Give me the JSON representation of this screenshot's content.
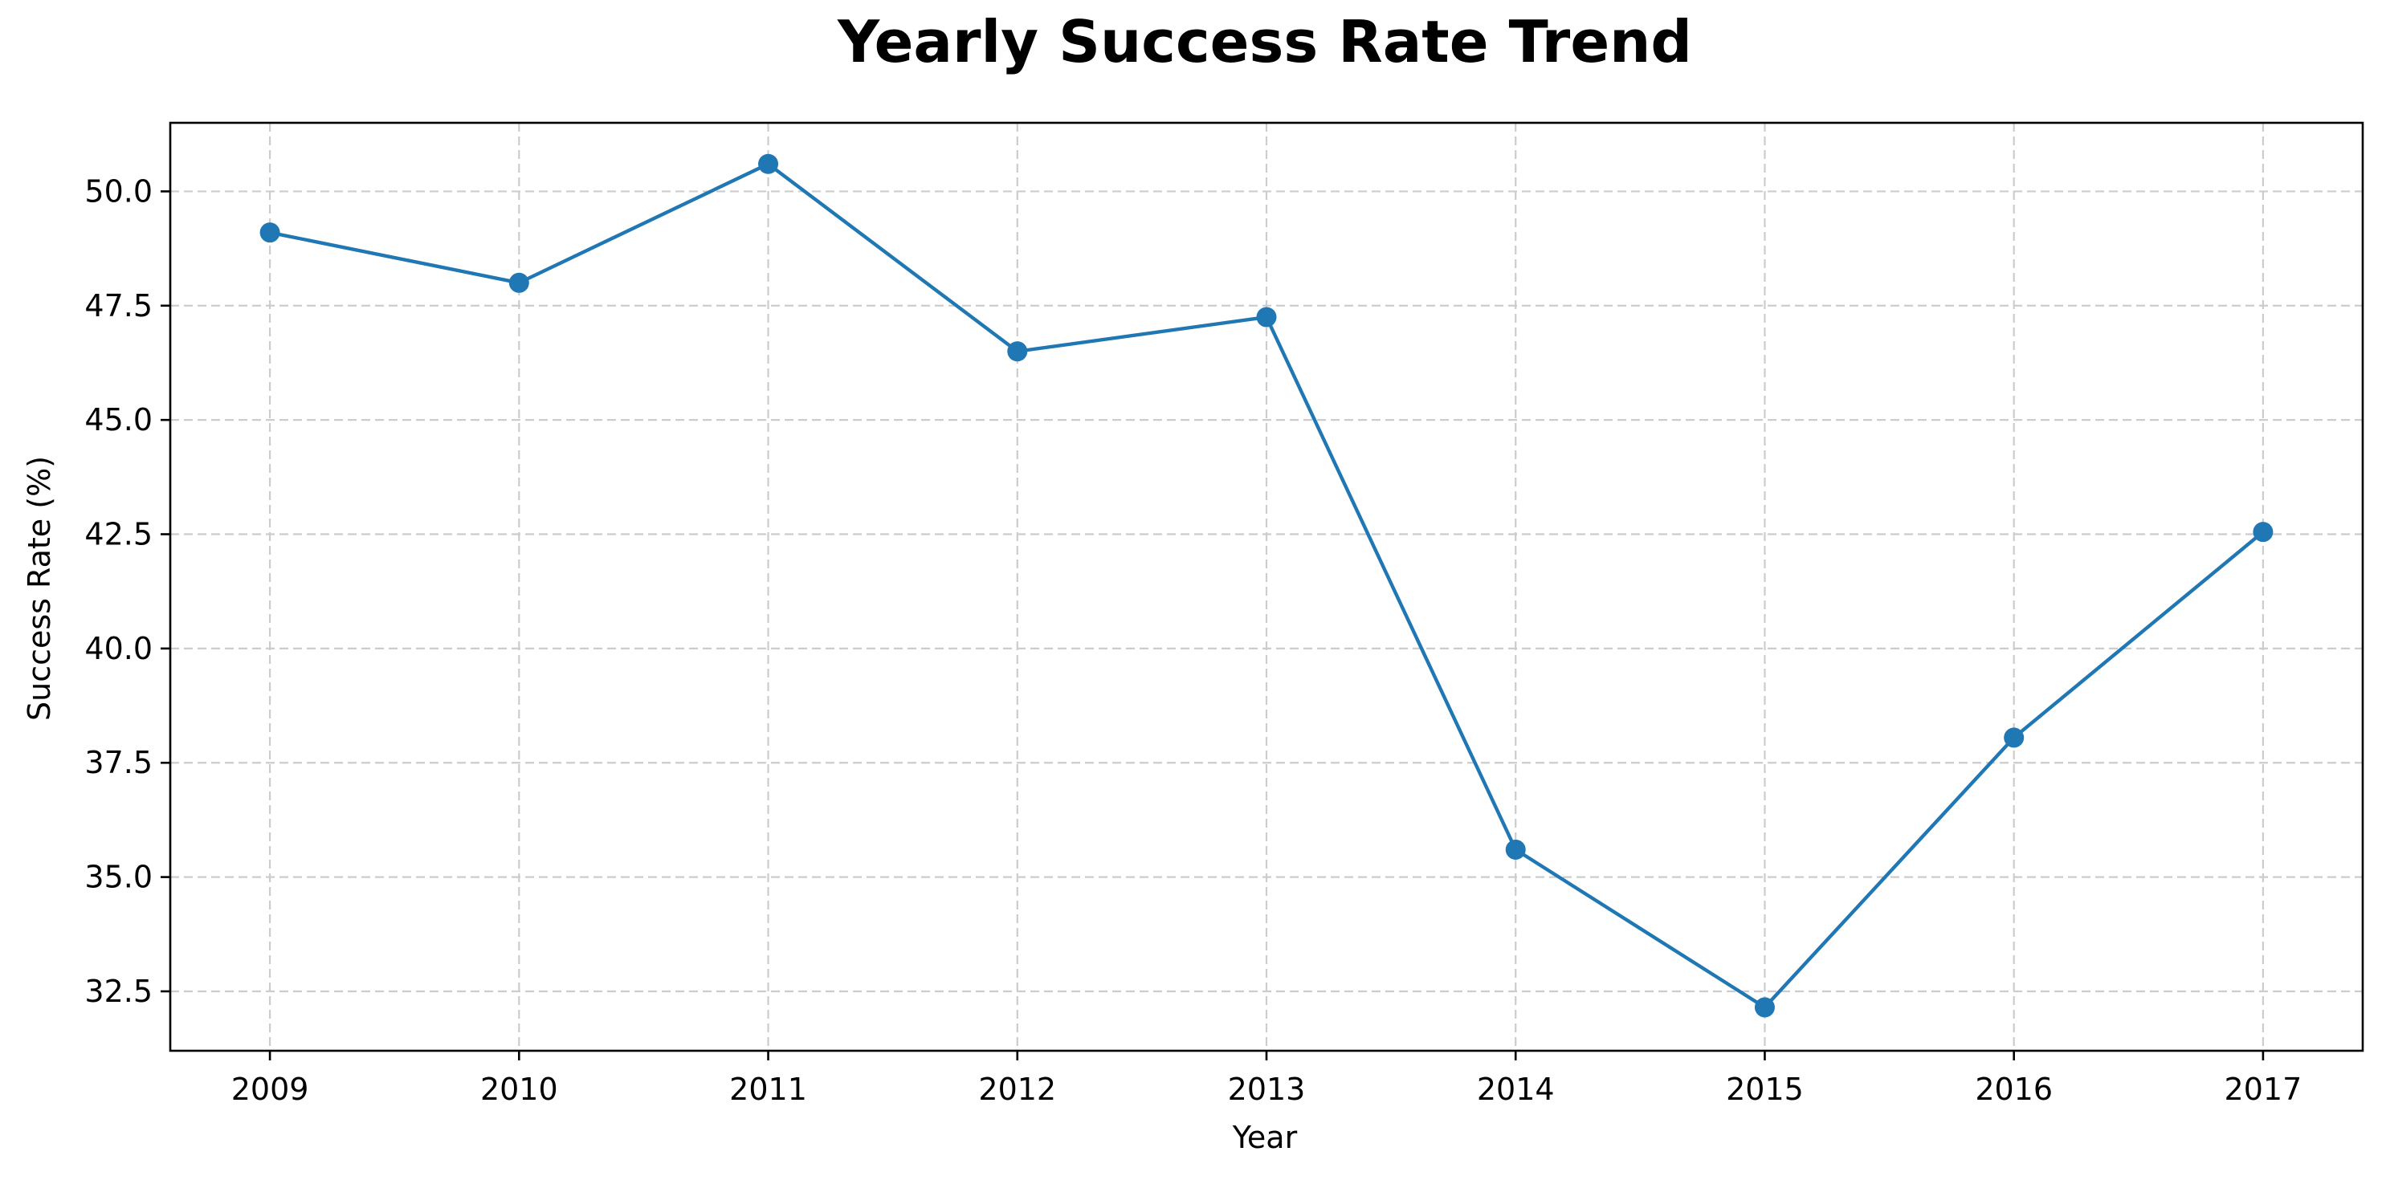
{
  "chart_data": {
    "type": "line",
    "title": "Yearly Success Rate Trend",
    "xlabel": "Year",
    "ylabel": "Success Rate (%)",
    "x": [
      2009,
      2010,
      2011,
      2012,
      2013,
      2014,
      2015,
      2016,
      2017
    ],
    "x_tick_labels": [
      "2009",
      "2010",
      "2011",
      "2012",
      "2013",
      "2014",
      "2015",
      "2016",
      "2017"
    ],
    "y_ticks": [
      32.5,
      35.0,
      37.5,
      40.0,
      42.5,
      45.0,
      47.5,
      50.0
    ],
    "y_tick_labels": [
      "32.5",
      "35.0",
      "37.5",
      "40.0",
      "42.5",
      "45.0",
      "47.5",
      "50.0"
    ],
    "ylim": [
      31.2,
      51.5
    ],
    "xlim": [
      2008.6,
      2017.4
    ],
    "grid": true,
    "series": [
      {
        "values": [
          49.1,
          48.0,
          50.6,
          46.5,
          47.25,
          35.6,
          32.15,
          38.05,
          42.55
        ],
        "color": "#1f77b4",
        "marker": "circle"
      }
    ]
  }
}
